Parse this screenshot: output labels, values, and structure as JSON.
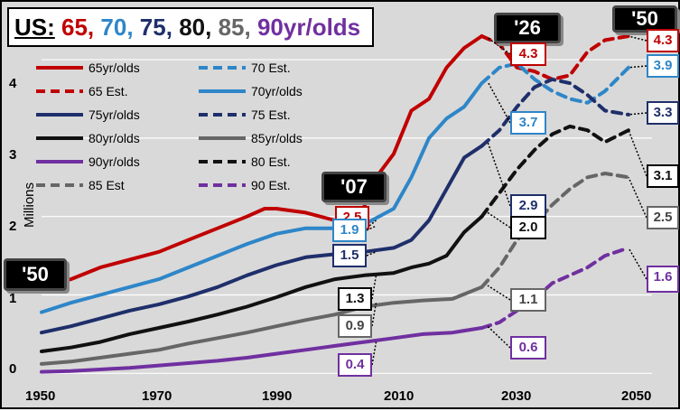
{
  "chart_data": {
    "type": "line",
    "title_prefix": "US:",
    "title_parts": [
      {
        "text": "65,",
        "color": "#c00000"
      },
      {
        "text": "70,",
        "color": "#2e86c8"
      },
      {
        "text": "75,",
        "color": "#1f2f6b"
      },
      {
        "text": "80,",
        "color": "#111111"
      },
      {
        "text": "85,",
        "color": "#666666"
      },
      {
        "text": "90yr/olds",
        "color": "#7030a0"
      }
    ],
    "ylabel": "Millions",
    "xlim": [
      1950,
      2054
    ],
    "ylim": [
      -0.1,
      4.6
    ],
    "xticks": [
      "1950",
      "1970",
      "1990",
      "2010",
      "2030",
      "2050"
    ],
    "xtick_values": [
      1950,
      1970,
      1990,
      2010,
      2030,
      2050
    ],
    "yticks": [
      "0",
      "1",
      "2",
      "3",
      "4"
    ],
    "ytick_values": [
      0,
      1,
      2,
      3,
      4
    ],
    "series": [
      {
        "name": "65yr/olds",
        "color": "#c00000",
        "dashed": false,
        "x": [
          1950,
          1955,
          1960,
          1965,
          1970,
          1975,
          1980,
          1985,
          1988,
          1990,
          1995,
          2000,
          2004,
          2007,
          2010,
          2013,
          2016,
          2019,
          2022,
          2025
        ],
        "y": [
          1.1,
          1.2,
          1.35,
          1.45,
          1.55,
          1.7,
          1.85,
          2.0,
          2.1,
          2.1,
          2.05,
          1.95,
          1.95,
          2.5,
          2.8,
          3.35,
          3.5,
          3.9,
          4.15,
          4.3
        ]
      },
      {
        "name": "65 Est.",
        "color": "#c00000",
        "dashed": true,
        "x": [
          2025,
          2028,
          2031,
          2034,
          2037,
          2040,
          2043,
          2046,
          2050
        ],
        "y": [
          4.3,
          4.2,
          3.9,
          3.85,
          3.75,
          3.8,
          4.1,
          4.25,
          4.3
        ]
      },
      {
        "name": "70yr/olds",
        "color": "#2e86c8",
        "dashed": false,
        "x": [
          1950,
          1955,
          1960,
          1965,
          1970,
          1975,
          1980,
          1985,
          1990,
          1995,
          2000,
          2005,
          2010,
          2013,
          2016,
          2019,
          2022,
          2025
        ],
        "y": [
          0.78,
          0.9,
          1.0,
          1.1,
          1.2,
          1.35,
          1.5,
          1.65,
          1.78,
          1.85,
          1.85,
          1.9,
          2.1,
          2.5,
          3.0,
          3.25,
          3.4,
          3.7
        ]
      },
      {
        "name": "70 Est.",
        "color": "#2e86c8",
        "dashed": true,
        "x": [
          2025,
          2028,
          2031,
          2034,
          2037,
          2040,
          2043,
          2046,
          2050
        ],
        "y": [
          3.7,
          3.9,
          3.95,
          3.75,
          3.6,
          3.5,
          3.45,
          3.6,
          3.9
        ]
      },
      {
        "name": "75yr/olds",
        "color": "#1f2f6b",
        "dashed": false,
        "x": [
          1950,
          1955,
          1960,
          1965,
          1970,
          1975,
          1980,
          1985,
          1990,
          1995,
          2000,
          2005,
          2010,
          2013,
          2016,
          2019,
          2022,
          2025
        ],
        "y": [
          0.52,
          0.6,
          0.7,
          0.8,
          0.88,
          0.98,
          1.1,
          1.25,
          1.38,
          1.48,
          1.52,
          1.55,
          1.6,
          1.7,
          1.95,
          2.35,
          2.75,
          2.9
        ]
      },
      {
        "name": "75 Est.",
        "color": "#1f2f6b",
        "dashed": true,
        "x": [
          2025,
          2028,
          2031,
          2034,
          2037,
          2040,
          2043,
          2046,
          2050
        ],
        "y": [
          2.9,
          3.1,
          3.4,
          3.65,
          3.75,
          3.7,
          3.55,
          3.35,
          3.3
        ]
      },
      {
        "name": "80yr/olds",
        "color": "#111111",
        "dashed": false,
        "x": [
          1950,
          1955,
          1960,
          1965,
          1970,
          1975,
          1980,
          1985,
          1990,
          1995,
          2000,
          2005,
          2010,
          2013,
          2016,
          2019,
          2022,
          2025
        ],
        "y": [
          0.28,
          0.33,
          0.4,
          0.5,
          0.58,
          0.66,
          0.75,
          0.85,
          0.97,
          1.1,
          1.2,
          1.25,
          1.28,
          1.35,
          1.4,
          1.5,
          1.8,
          2.0
        ]
      },
      {
        "name": "80 Est.",
        "color": "#111111",
        "dashed": true,
        "x": [
          2025,
          2028,
          2031,
          2034,
          2037,
          2040,
          2043,
          2046,
          2050
        ],
        "y": [
          2.0,
          2.3,
          2.6,
          2.85,
          3.05,
          3.15,
          3.1,
          2.95,
          3.1
        ]
      },
      {
        "name": "85yr/olds",
        "color": "#666666",
        "dashed": false,
        "x": [
          1950,
          1955,
          1960,
          1965,
          1970,
          1975,
          1980,
          1985,
          1990,
          1995,
          2000,
          2005,
          2010,
          2015,
          2020,
          2025
        ],
        "y": [
          0.12,
          0.15,
          0.2,
          0.25,
          0.3,
          0.38,
          0.45,
          0.52,
          0.6,
          0.68,
          0.75,
          0.85,
          0.9,
          0.93,
          0.95,
          1.1
        ]
      },
      {
        "name": "85 Est",
        "color": "#666666",
        "dashed": true,
        "x": [
          2025,
          2028,
          2031,
          2034,
          2037,
          2040,
          2043,
          2046,
          2050
        ],
        "y": [
          1.1,
          1.35,
          1.7,
          1.9,
          2.15,
          2.35,
          2.5,
          2.55,
          2.5
        ]
      },
      {
        "name": "90yr/olds",
        "color": "#7030a0",
        "dashed": false,
        "x": [
          1950,
          1955,
          1960,
          1965,
          1970,
          1975,
          1980,
          1985,
          1990,
          1995,
          2000,
          2005,
          2010,
          2015,
          2020,
          2025
        ],
        "y": [
          0.02,
          0.03,
          0.05,
          0.07,
          0.1,
          0.13,
          0.16,
          0.2,
          0.25,
          0.3,
          0.35,
          0.4,
          0.45,
          0.5,
          0.52,
          0.58
        ]
      },
      {
        "name": "90 Est.",
        "color": "#7030a0",
        "dashed": true,
        "x": [
          2025,
          2028,
          2031,
          2034,
          2037,
          2040,
          2043,
          2046,
          2050
        ],
        "y": [
          0.58,
          0.65,
          0.8,
          0.95,
          1.15,
          1.25,
          1.35,
          1.5,
          1.6
        ]
      }
    ],
    "legend": [
      {
        "label": "65yr/olds",
        "color": "#c00000",
        "dashed": false
      },
      {
        "label": "70 Est.",
        "color": "#2e86c8",
        "dashed": true
      },
      {
        "label": "65 Est.",
        "color": "#c00000",
        "dashed": true
      },
      {
        "label": "70yr/olds",
        "color": "#2e86c8",
        "dashed": false
      },
      {
        "label": "75yr/olds",
        "color": "#1f2f6b",
        "dashed": false
      },
      {
        "label": "75 Est.",
        "color": "#1f2f6b",
        "dashed": true
      },
      {
        "label": "80yr/olds",
        "color": "#111111",
        "dashed": false
      },
      {
        "label": "85yr/olds",
        "color": "#666666",
        "dashed": false
      },
      {
        "label": "90yr/olds",
        "color": "#7030a0",
        "dashed": false
      },
      {
        "label": "80 Est.",
        "color": "#111111",
        "dashed": true
      },
      {
        "label": "85 Est",
        "color": "#666666",
        "dashed": true
      },
      {
        "label": "90 Est.",
        "color": "#7030a0",
        "dashed": true
      }
    ],
    "year_tags": [
      "'50",
      "'07",
      "'26",
      "'50"
    ],
    "annotations": {
      "y2007": {
        "v65": "2.5",
        "v70": "1.9",
        "v75": "1.5",
        "v80": "1.3",
        "v85": "0.9",
        "v90": "0.4"
      },
      "y2026": {
        "v65": "4.3",
        "v70": "3.7",
        "v75": "2.9",
        "v80": "2.0",
        "v85": "1.1",
        "v90": "0.6"
      },
      "y2050": {
        "v65": "4.3",
        "v70": "3.9",
        "v75": "3.3",
        "v80": "3.1",
        "v85": "2.5",
        "v90": "1.6"
      }
    },
    "annotation_colors": {
      "v65": "#c00000",
      "v70": "#2e86c8",
      "v75": "#1f2f6b",
      "v80": "#111111",
      "v85": "#444444",
      "v90": "#7030a0"
    }
  }
}
